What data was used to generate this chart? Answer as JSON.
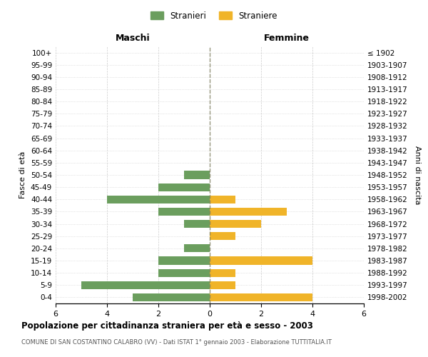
{
  "age_groups": [
    "0-4",
    "5-9",
    "10-14",
    "15-19",
    "20-24",
    "25-29",
    "30-34",
    "35-39",
    "40-44",
    "45-49",
    "50-54",
    "55-59",
    "60-64",
    "65-69",
    "70-74",
    "75-79",
    "80-84",
    "85-89",
    "90-94",
    "95-99",
    "100+"
  ],
  "birth_years": [
    "1998-2002",
    "1993-1997",
    "1988-1992",
    "1983-1987",
    "1978-1982",
    "1973-1977",
    "1968-1972",
    "1963-1967",
    "1958-1962",
    "1953-1957",
    "1948-1952",
    "1943-1947",
    "1938-1942",
    "1933-1937",
    "1928-1932",
    "1923-1927",
    "1918-1922",
    "1913-1917",
    "1908-1912",
    "1903-1907",
    "≤ 1902"
  ],
  "males": [
    3,
    5,
    2,
    2,
    1,
    0,
    1,
    2,
    4,
    2,
    1,
    0,
    0,
    0,
    0,
    0,
    0,
    0,
    0,
    0,
    0
  ],
  "females": [
    4,
    1,
    1,
    4,
    0,
    1,
    2,
    3,
    1,
    0,
    0,
    0,
    0,
    0,
    0,
    0,
    0,
    0,
    0,
    0,
    0
  ],
  "male_color": "#6b9e5e",
  "female_color": "#f0b429",
  "title": "Popolazione per cittadinanza straniera per età e sesso - 2003",
  "subtitle": "COMUNE DI SAN COSTANTINO CALABRO (VV) - Dati ISTAT 1° gennaio 2003 - Elaborazione TUTTITALIA.IT",
  "xlabel_left": "Maschi",
  "xlabel_right": "Femmine",
  "ylabel_left": "Fasce di età",
  "ylabel_right": "Anni di nascita",
  "legend_male": "Stranieri",
  "legend_female": "Straniere",
  "xlim": 6,
  "background_color": "#ffffff",
  "grid_color": "#cccccc"
}
